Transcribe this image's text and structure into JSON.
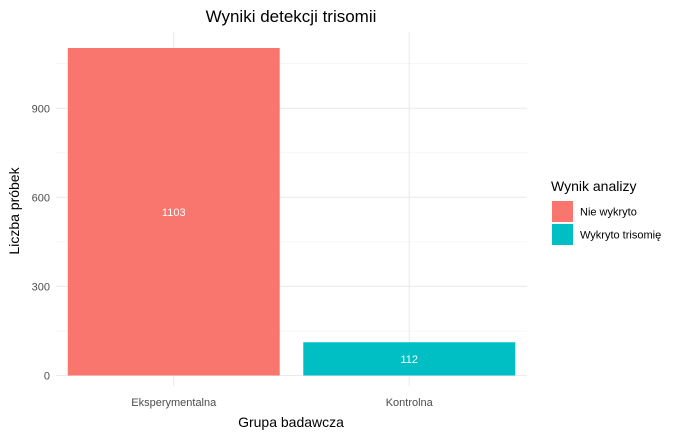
{
  "chart_data": {
    "type": "bar",
    "title": "Wyniki detekcji trisomii",
    "xlabel": "Grupa badawcza",
    "ylabel": "Liczba próbek",
    "categories": [
      "Eksperymentalna",
      "Kontrolna"
    ],
    "values": [
      1103,
      112
    ],
    "bar_labels": [
      "1103",
      "112"
    ],
    "bar_series": [
      "Nie wykryto",
      "Wykryto trisomię"
    ],
    "ylim": [
      0,
      1103
    ],
    "yticks": [
      0,
      300,
      600,
      900
    ],
    "ytick_labels": [
      "0",
      "300",
      "600",
      "900"
    ],
    "grid": true,
    "legend": {
      "title": "Wynik analizy",
      "placement": "right",
      "entries": [
        {
          "label": "Nie wykryto",
          "color": "#F8766D"
        },
        {
          "label": "Wykryto trisomię",
          "color": "#00BFC4"
        }
      ]
    }
  }
}
